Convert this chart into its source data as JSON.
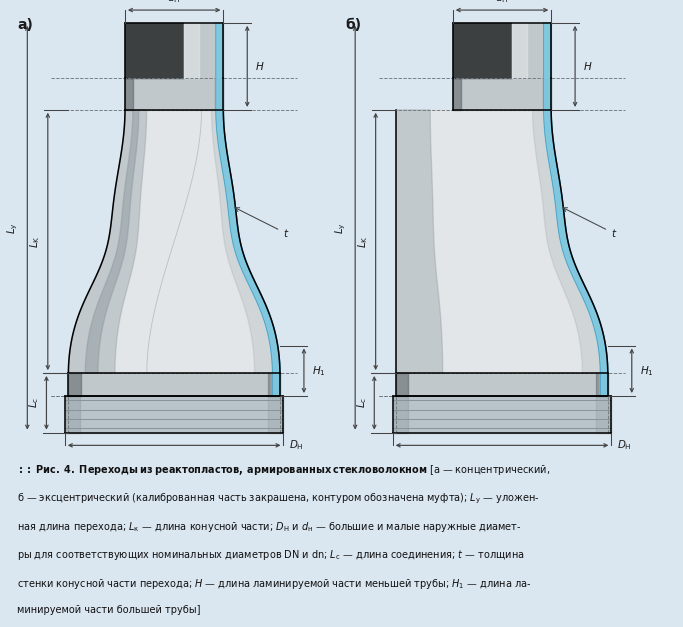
{
  "bg_color": "#dae6f0",
  "fig_bg": "#dae6f0",
  "silver_light": "#e2e6e8",
  "silver_mid": "#c0c8cc",
  "silver_dark": "#909aa0",
  "dark_cap": "#3c4040",
  "dark_band": "#5a6065",
  "blue_fill": "#7dc8e0",
  "blue_edge": "#4a9abf",
  "dim_color": "#444444",
  "text_color": "#1a1a1a",
  "dashed_color": "#707880",
  "label_a": "а)",
  "label_b": "б)",
  "ann_dn": "$d_{\\rm H}$",
  "ann_DN": "$D_{\\rm H}$",
  "ann_H": "$H$",
  "ann_H1": "$H_1$",
  "ann_Ly": "$L_{\\rm y}$",
  "ann_Lk": "$L_{\\rm K}$",
  "ann_Lc": "$L_{\\rm c}$",
  "ann_t": "$t$",
  "cap_lines": [
    "::",
    " Рис. 4. ",
    "Переходы из реактопластов, армированных стекловолокном",
    " [а — концентрический, б — эксцентрический (калиброванная часть закрашена, контуром обозначена муфта); Lу — уложен-"
  ]
}
